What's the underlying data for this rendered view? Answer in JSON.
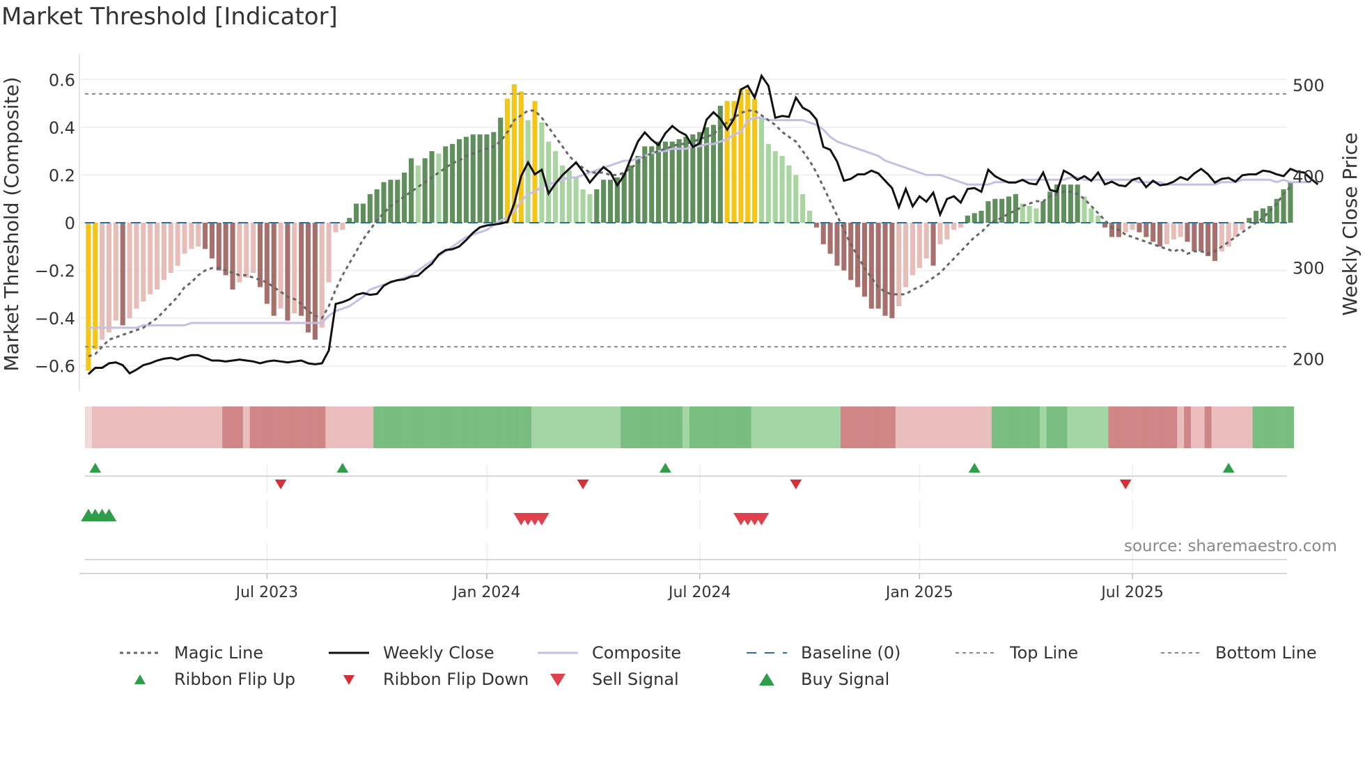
{
  "chart_data": {
    "type": "bar",
    "title": "Market Threshold [Indicator]",
    "ylabel": "Market Threshold (Composite)",
    "y2label": "Weekly Close Price",
    "ylim": [
      -0.7,
      0.7
    ],
    "y2lim": [
      166,
      532
    ],
    "yticks": [
      0.6,
      0.4,
      0.2,
      0,
      -0.2,
      -0.4,
      -0.6
    ],
    "ytick_labels": [
      "0.6",
      "0.4",
      "0.2",
      "0",
      "−0.2",
      "−0.4",
      "−0.6"
    ],
    "y2ticks": [
      500,
      400,
      300,
      200
    ],
    "y2tick_labels": [
      "500",
      "400",
      "300",
      "200"
    ],
    "top_line": 0.54,
    "bottom_line": -0.52,
    "x_ticks": [
      {
        "label": "Jul 2023",
        "week": 26
      },
      {
        "label": "Jan 2024",
        "week": 58
      },
      {
        "label": "Jul 2024",
        "week": 89
      },
      {
        "label": "Jan 2025",
        "week": 121
      },
      {
        "label": "Jul 2025",
        "week": 152
      }
    ],
    "weeks": 175,
    "start": "2023-01-02",
    "composite_bars": [
      -0.62,
      -0.53,
      -0.49,
      -0.46,
      -0.41,
      -0.43,
      -0.4,
      -0.36,
      -0.33,
      -0.3,
      -0.28,
      -0.24,
      -0.21,
      -0.18,
      -0.13,
      -0.11,
      -0.1,
      -0.11,
      -0.15,
      -0.2,
      -0.22,
      -0.28,
      -0.25,
      -0.23,
      -0.21,
      -0.27,
      -0.34,
      -0.39,
      -0.36,
      -0.41,
      -0.38,
      -0.39,
      -0.46,
      -0.49,
      -0.44,
      -0.25,
      -0.04,
      -0.03,
      0.02,
      0.08,
      0.08,
      0.12,
      0.14,
      0.17,
      0.18,
      0.18,
      0.21,
      0.27,
      0.24,
      0.27,
      0.3,
      0.29,
      0.32,
      0.33,
      0.35,
      0.36,
      0.37,
      0.37,
      0.37,
      0.38,
      0.44,
      0.52,
      0.58,
      0.55,
      0.43,
      0.51,
      0.42,
      0.34,
      0.3,
      0.24,
      0.22,
      0.19,
      0.14,
      0.12,
      0.14,
      0.18,
      0.18,
      0.19,
      0.21,
      0.24,
      0.28,
      0.32,
      0.32,
      0.34,
      0.34,
      0.34,
      0.35,
      0.36,
      0.37,
      0.38,
      0.4,
      0.41,
      0.49,
      0.51,
      0.51,
      0.56,
      0.56,
      0.52,
      0.44,
      0.33,
      0.3,
      0.28,
      0.24,
      0.2,
      0.12,
      0.05,
      -0.02,
      -0.09,
      -0.13,
      -0.18,
      -0.2,
      -0.24,
      -0.27,
      -0.31,
      -0.36,
      -0.36,
      -0.39,
      -0.4,
      -0.35,
      -0.27,
      -0.22,
      -0.19,
      -0.15,
      -0.18,
      -0.09,
      -0.07,
      -0.03,
      -0.02,
      0.03,
      0.04,
      0.05,
      0.09,
      0.1,
      0.1,
      0.11,
      0.12,
      0.08,
      0.07,
      0.06,
      0.09,
      0.13,
      0.16,
      0.16,
      0.16,
      0.16,
      0.11,
      0.06,
      0.03,
      -0.02,
      -0.06,
      -0.06,
      -0.04,
      -0.03,
      -0.04,
      -0.06,
      -0.08,
      -0.1,
      -0.09,
      -0.07,
      -0.06,
      -0.08,
      -0.12,
      -0.12,
      -0.14,
      -0.16,
      -0.12,
      -0.1,
      -0.06,
      -0.03,
      0.02,
      0.05,
      0.06,
      0.07,
      0.1,
      0.14,
      0.17
    ],
    "weekly_close": [
      183,
      190,
      190,
      195,
      196,
      193,
      184,
      188,
      193,
      195,
      198,
      200,
      201,
      199,
      202,
      204,
      204,
      201,
      198,
      198,
      197,
      198,
      199,
      198,
      197,
      195,
      197,
      198,
      197,
      196,
      197,
      198,
      195,
      194,
      195,
      209,
      260,
      262,
      265,
      270,
      272,
      270,
      271,
      280,
      284,
      286,
      287,
      290,
      291,
      298,
      304,
      314,
      319,
      320,
      323,
      330,
      338,
      344,
      346,
      347,
      348,
      350,
      370,
      400,
      415,
      402,
      407,
      381,
      392,
      401,
      408,
      415,
      405,
      393,
      402,
      410,
      404,
      390,
      401,
      420,
      438,
      448,
      440,
      434,
      447,
      455,
      449,
      445,
      432,
      436,
      462,
      470,
      463,
      451,
      463,
      495,
      499,
      486,
      510,
      499,
      464,
      466,
      465,
      486,
      475,
      471,
      462,
      432,
      429,
      416,
      395,
      397,
      402,
      402,
      406,
      403,
      395,
      387,
      366,
      386,
      367,
      378,
      372,
      382,
      358,
      375,
      378,
      371,
      386,
      387,
      383,
      407,
      400,
      396,
      393,
      393,
      396,
      392,
      391,
      404,
      385,
      383,
      406,
      402,
      396,
      400,
      395,
      404,
      391,
      394,
      390,
      389,
      396,
      398,
      388,
      395,
      390,
      391,
      394,
      399,
      396,
      403,
      408,
      402,
      393,
      397,
      398,
      394,
      401,
      402,
      402,
      406,
      405,
      402,
      400,
      408,
      405,
      404,
      397,
      391
    ],
    "series": [
      {
        "name": "Magic Line",
        "values": [
          -0.56,
          -0.55,
          -0.52,
          -0.49,
          -0.48,
          -0.47,
          -0.46,
          -0.45,
          -0.44,
          -0.42,
          -0.4,
          -0.37,
          -0.34,
          -0.31,
          -0.27,
          -0.25,
          -0.22,
          -0.2,
          -0.19,
          -0.19,
          -0.2,
          -0.21,
          -0.22,
          -0.22,
          -0.23,
          -0.24,
          -0.25,
          -0.27,
          -0.29,
          -0.31,
          -0.32,
          -0.34,
          -0.37,
          -0.39,
          -0.4,
          -0.35,
          -0.28,
          -0.22,
          -0.17,
          -0.12,
          -0.07,
          -0.03,
          0.01,
          0.04,
          0.07,
          0.09,
          0.11,
          0.13,
          0.15,
          0.17,
          0.19,
          0.21,
          0.23,
          0.25,
          0.26,
          0.28,
          0.29,
          0.3,
          0.31,
          0.32,
          0.34,
          0.38,
          0.43,
          0.45,
          0.47,
          0.47,
          0.44,
          0.4,
          0.36,
          0.32,
          0.28,
          0.25,
          0.23,
          0.21,
          0.21,
          0.21,
          0.2,
          0.2,
          0.21,
          0.23,
          0.25,
          0.28,
          0.29,
          0.3,
          0.31,
          0.32,
          0.33,
          0.33,
          0.34,
          0.35,
          0.36,
          0.37,
          0.4,
          0.42,
          0.44,
          0.46,
          0.47,
          0.47,
          0.45,
          0.43,
          0.41,
          0.38,
          0.36,
          0.34,
          0.3,
          0.26,
          0.21,
          0.15,
          0.09,
          0.03,
          -0.03,
          -0.09,
          -0.14,
          -0.19,
          -0.23,
          -0.27,
          -0.29,
          -0.3,
          -0.3,
          -0.3,
          -0.28,
          -0.27,
          -0.25,
          -0.23,
          -0.21,
          -0.18,
          -0.15,
          -0.12,
          -0.09,
          -0.06,
          -0.04,
          -0.01,
          0.01,
          0.02,
          0.04,
          0.05,
          0.07,
          0.08,
          0.09,
          0.09,
          0.11,
          0.12,
          0.13,
          0.13,
          0.12,
          0.1,
          0.07,
          0.04,
          0.01,
          -0.02,
          -0.03,
          -0.05,
          -0.06,
          -0.07,
          -0.08,
          -0.09,
          -0.1,
          -0.11,
          -0.12,
          -0.11,
          -0.13,
          -0.12,
          -0.12,
          -0.13,
          -0.12,
          -0.1,
          -0.08,
          -0.06,
          -0.04,
          -0.02,
          0.0,
          0.02,
          0.05,
          0.08,
          0.12,
          0.15
        ]
      },
      {
        "name": "Weekly Close",
        "axis": "right"
      },
      {
        "name": "Composite",
        "values": [
          -0.44,
          -0.44,
          -0.44,
          -0.44,
          -0.44,
          -0.44,
          -0.44,
          -0.44,
          -0.43,
          -0.43,
          -0.43,
          -0.43,
          -0.43,
          -0.43,
          -0.43,
          -0.42,
          -0.42,
          -0.42,
          -0.42,
          -0.42,
          -0.42,
          -0.42,
          -0.42,
          -0.42,
          -0.42,
          -0.42,
          -0.42,
          -0.42,
          -0.42,
          -0.42,
          -0.42,
          -0.42,
          -0.42,
          -0.42,
          -0.42,
          -0.39,
          -0.37,
          -0.36,
          -0.35,
          -0.33,
          -0.31,
          -0.28,
          -0.27,
          -0.26,
          -0.25,
          -0.24,
          -0.23,
          -0.22,
          -0.2,
          -0.18,
          -0.16,
          -0.14,
          -0.12,
          -0.1,
          -0.08,
          -0.06,
          -0.05,
          -0.04,
          -0.03,
          -0.01,
          0.01,
          0.02,
          0.05,
          0.09,
          0.12,
          0.13,
          0.15,
          0.16,
          0.17,
          0.18,
          0.19,
          0.19,
          0.2,
          0.21,
          0.22,
          0.23,
          0.24,
          0.25,
          0.26,
          0.26,
          0.27,
          0.28,
          0.29,
          0.3,
          0.3,
          0.31,
          0.31,
          0.31,
          0.32,
          0.32,
          0.33,
          0.33,
          0.34,
          0.35,
          0.37,
          0.38,
          0.43,
          0.44,
          0.44,
          0.43,
          0.43,
          0.43,
          0.43,
          0.43,
          0.43,
          0.42,
          0.41,
          0.39,
          0.36,
          0.34,
          0.33,
          0.32,
          0.31,
          0.3,
          0.29,
          0.28,
          0.26,
          0.25,
          0.24,
          0.23,
          0.22,
          0.21,
          0.2,
          0.2,
          0.2,
          0.19,
          0.18,
          0.17,
          0.16,
          0.16,
          0.16,
          0.16,
          0.17,
          0.17,
          0.17,
          0.17,
          0.18,
          0.18,
          0.18,
          0.18,
          0.18,
          0.18,
          0.18,
          0.19,
          0.19,
          0.18,
          0.18,
          0.18,
          0.18,
          0.18,
          0.18,
          0.18,
          0.18,
          0.17,
          0.17,
          0.17,
          0.17,
          0.16,
          0.16,
          0.16,
          0.16,
          0.16,
          0.16,
          0.16,
          0.16,
          0.17,
          0.17,
          0.17,
          0.18,
          0.18,
          0.18,
          0.18,
          0.18,
          0.17,
          0.18,
          0.17,
          0.17,
          0.17,
          0.17
        ]
      },
      {
        "name": "Baseline (0)",
        "value": 0
      },
      {
        "name": "Top Line",
        "value": 0.54
      },
      {
        "name": "Bottom Line",
        "value": -0.52
      }
    ],
    "ribbon_flip_up_weeks": [
      1,
      37,
      84,
      129,
      166
    ],
    "ribbon_flip_down_weeks": [
      28,
      72,
      103,
      151
    ],
    "sell_signal_weeks": [
      63,
      64,
      65,
      66,
      95,
      96,
      97,
      98
    ],
    "buy_signal_weeks": [
      0,
      1,
      2,
      3
    ],
    "legend_position": "bottom"
  },
  "legend": [
    {
      "label": "Magic Line",
      "icon": "dotted-line-icon"
    },
    {
      "label": "Weekly Close",
      "icon": "solid-line-icon"
    },
    {
      "label": "Composite",
      "icon": "solid-line-icon"
    },
    {
      "label": "Baseline (0)",
      "icon": "dashed-line-icon"
    },
    {
      "label": "Top Line",
      "icon": "dashed-line-icon"
    },
    {
      "label": "Bottom Line",
      "icon": "dashed-line-icon"
    },
    {
      "label": "Ribbon Flip Up",
      "icon": "triangle-up-icon"
    },
    {
      "label": "Ribbon Flip Down",
      "icon": "triangle-down-icon"
    },
    {
      "label": "Sell Signal",
      "icon": "triangle-down-icon"
    },
    {
      "label": "Buy Signal",
      "icon": "triangle-up-icon"
    }
  ],
  "source": "source: sharemaestro.com",
  "colors": {
    "yellow": "#f5c518",
    "dark_green": "#5f8f5a",
    "light_green": "#a8d5a0",
    "dark_red": "#a8706c",
    "light_red": "#e8bdb8",
    "magic_line": "#666666",
    "weekly_close": "#111111",
    "composite": "#c5bfe6",
    "baseline": "#2a6f97",
    "threshold": "#888888",
    "flip_up": "#2e9e49",
    "flip_down": "#d62f35",
    "sell": "#e0424d",
    "buy": "#2e9e49"
  }
}
